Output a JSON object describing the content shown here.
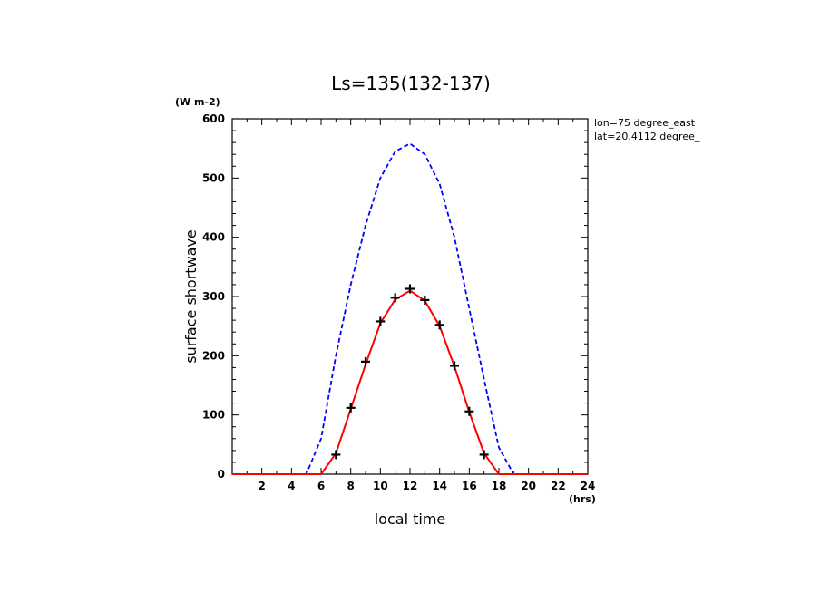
{
  "chart_data": {
    "type": "line",
    "title": "Ls=135(132-137)",
    "xlabel": "local time",
    "xunit": "(hrs)",
    "ylabel": "surface shortwave",
    "yunit": "(W m-2)",
    "xlim": [
      0,
      24
    ],
    "ylim": [
      0,
      600
    ],
    "x_ticks": [
      2,
      4,
      6,
      8,
      10,
      12,
      14,
      16,
      18,
      20,
      22,
      24
    ],
    "y_ticks": [
      0,
      100,
      200,
      300,
      400,
      500,
      600
    ],
    "annotations": [
      "lon=75 degree_east",
      "lat=20.4112 degree_"
    ],
    "grid": false,
    "series": [
      {
        "color": "#0000ff",
        "style": "dashed",
        "x": [
          0,
          1,
          2,
          3,
          4,
          5,
          6,
          7,
          8,
          9,
          10,
          11,
          12,
          13,
          14,
          15,
          16,
          17,
          18,
          19,
          20,
          21,
          22,
          23,
          24
        ],
        "y": [
          0,
          0,
          0,
          0,
          0,
          0,
          60,
          200,
          320,
          420,
          500,
          545,
          558,
          540,
          490,
          400,
          280,
          160,
          45,
          0,
          0,
          0,
          0,
          0,
          0
        ]
      },
      {
        "color": "#ff0000",
        "style": "solid",
        "x": [
          0,
          1,
          2,
          3,
          4,
          5,
          6,
          7,
          8,
          9,
          10,
          11,
          12,
          13,
          14,
          15,
          16,
          17,
          18,
          19,
          20,
          21,
          22,
          23,
          24
        ],
        "y": [
          0,
          0,
          0,
          0,
          0,
          0,
          0,
          35,
          110,
          185,
          255,
          295,
          310,
          293,
          250,
          182,
          105,
          35,
          0,
          0,
          0,
          0,
          0,
          0,
          0
        ]
      },
      {
        "color": "#000000",
        "style": "markers",
        "marker": "plus",
        "x": [
          7,
          8,
          9,
          10,
          11,
          12,
          13,
          14,
          15,
          16,
          17
        ],
        "y": [
          33,
          112,
          190,
          258,
          298,
          313,
          294,
          252,
          183,
          106,
          33
        ]
      }
    ]
  }
}
